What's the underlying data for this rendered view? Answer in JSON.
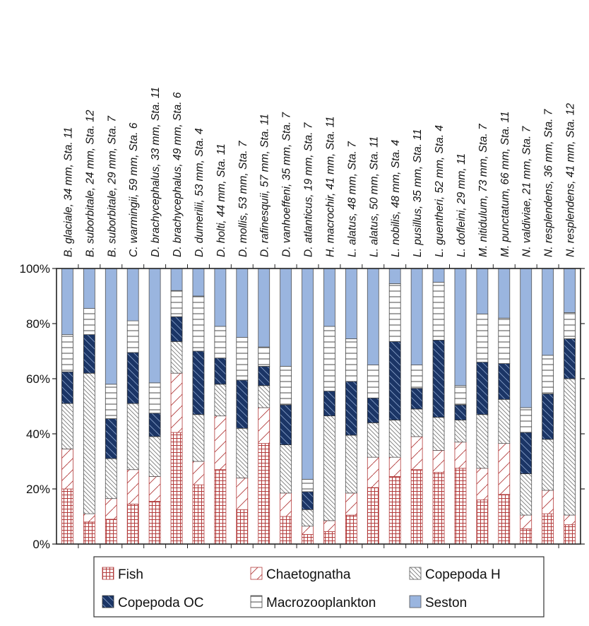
{
  "chart_data": {
    "type": "bar",
    "stacked": true,
    "percent": true,
    "categories": [
      "B. glaciale, 34 mm, Sta. 11",
      "B. suborbitale, 24 mm,  Sta. 12",
      "B. suborbitale, 29 mm,  Sta. 7",
      "C. warmingii, 59 mm, Sta. 6",
      "D. brachycephalus, 33 mm,  Sta. 11",
      "D. brachycephalus, 49 mm,  Sta. 6",
      "D. dumerilii, 53 mm, Sta. 4",
      "D. holti, 44 mm, Sta. 11",
      "D. mollis, 53 mm, Sta. 7",
      "D. rafinesquii, 57 mm, Sta. 11",
      "D. vanhoeffeni, 35 mm, Sta. 7",
      "D. atlanticus, 19 mm, Sta. 7",
      "H. macrochir, 41 mm, Sta. 11",
      "L. alatus, 48 mm, Sta. 7",
      "L. alatus, 50 mm,  Sta. 11",
      "L. nobilis, 48 mm, Sta. 4",
      "L. pusillus, 35 mm, Sta. 11",
      "L. guentheri, 52  mm, Sta. 4",
      "L. dofleini, 29 mm, 11",
      "M. nitidulum, 73 mm, Sta. 7",
      "M. punctatum, 66 mm, Sta. 11",
      "N. valdiviae, 21 mm, Sta. 7",
      "N. resplendens, 36 mm,  Sta. 7",
      "N. resplendens, 41 mm, Sta. 12"
    ],
    "series": [
      {
        "name": "Fish",
        "pattern": "red-grid",
        "values": [
          20,
          8,
          9,
          14.5,
          15.5,
          40.5,
          21.5,
          27,
          12.5,
          36.5,
          10,
          3.5,
          4.5,
          10.5,
          20.5,
          24.5,
          27,
          26,
          27.5,
          16,
          18,
          5.5,
          11,
          7
        ]
      },
      {
        "name": "Chaetognatha",
        "pattern": "red-diagonal",
        "values": [
          14.5,
          3,
          7.5,
          12.5,
          9,
          21.5,
          8.5,
          19.5,
          11.5,
          13,
          8.5,
          3,
          4,
          8,
          11,
          7,
          12,
          8,
          9.5,
          11.5,
          18.5,
          5,
          8.5,
          3.5
        ]
      },
      {
        "name": "Copepoda H",
        "pattern": "gray-backslash",
        "values": [
          16.5,
          51,
          14.5,
          24,
          14.5,
          11.5,
          17,
          11.5,
          18,
          8,
          17.5,
          6,
          38,
          21,
          12.5,
          13.5,
          10,
          12,
          8,
          19.5,
          16,
          15,
          18.5,
          49.5
        ]
      },
      {
        "name": "Copepoda OC",
        "pattern": "navy-backslash",
        "values": [
          11.5,
          14,
          14.5,
          18.5,
          8.5,
          9,
          23,
          9.5,
          17.5,
          7,
          14.5,
          6.5,
          9,
          19.5,
          9,
          28.5,
          7.5,
          28,
          5.5,
          19,
          13,
          15,
          16.5,
          14.5
        ]
      },
      {
        "name": "Macrozooplankton",
        "pattern": "horizontal-lines",
        "values": [
          13.5,
          9.5,
          12.5,
          11.5,
          11,
          9.5,
          20,
          11.5,
          15.5,
          7,
          14,
          4.5,
          23.5,
          15.5,
          12,
          21,
          8.5,
          21,
          7,
          17.5,
          16.5,
          9,
          14,
          9.5
        ]
      },
      {
        "name": "Seston",
        "pattern": "solid-light-blue",
        "values": [
          24,
          14.5,
          42,
          19,
          41.5,
          8,
          10,
          21,
          25,
          28.5,
          35.5,
          76.5,
          21,
          25.5,
          35,
          5.5,
          35,
          5,
          42.5,
          16.5,
          18,
          50.5,
          31.5,
          16
        ]
      }
    ],
    "yticks": [
      "0%",
      "20%",
      "40%",
      "60%",
      "80%",
      "100%"
    ],
    "ylim": [
      0,
      100
    ],
    "grid": false,
    "legend_position": "bottom",
    "colors": {
      "fish": "#b23a3a",
      "chaetognatha": "#b23a3a",
      "copepoda_h": "#777777",
      "copepoda_oc": "#1b3566",
      "macro": "#666666",
      "seston": "#9ab5df"
    }
  }
}
